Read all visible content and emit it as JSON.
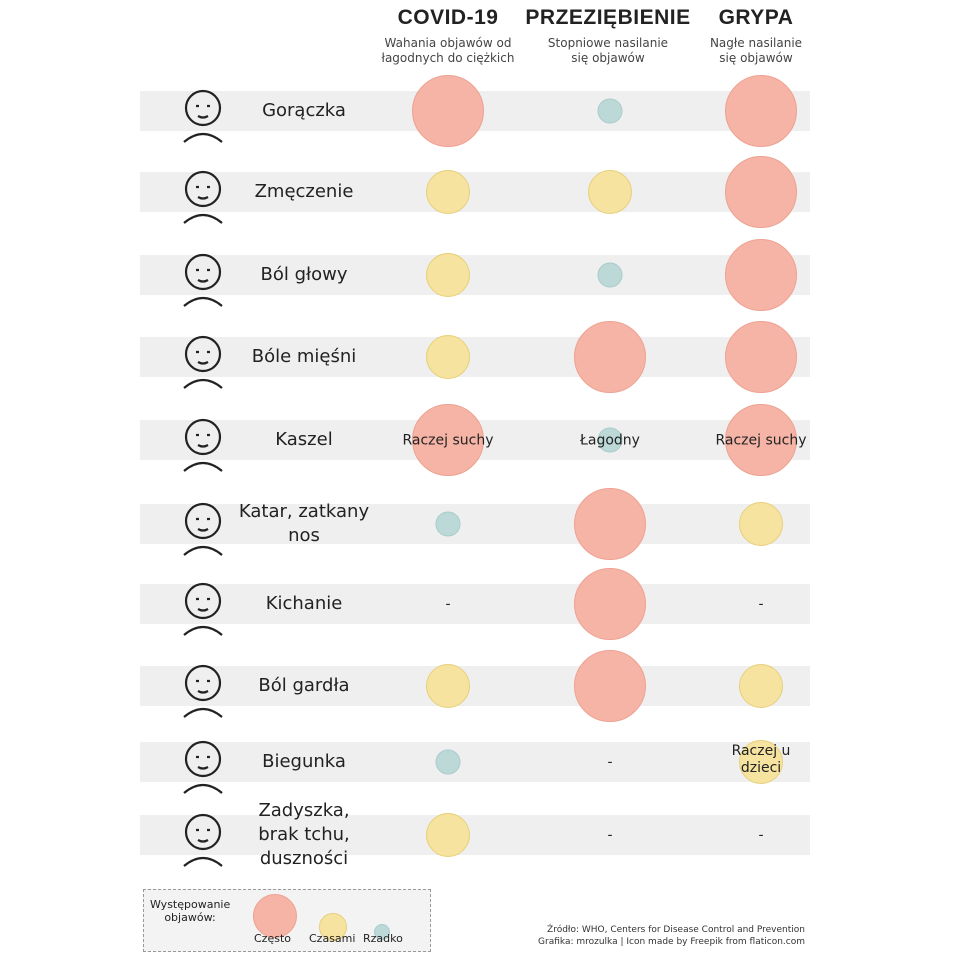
{
  "columns": [
    {
      "title": "COVID-19",
      "subtitle": "Wahania objawów od łagodnych do ciężkich"
    },
    {
      "title": "PRZEZIĘBIENIE",
      "subtitle": "Stopniowe nasilanie się objawów"
    },
    {
      "title": "GRYPA",
      "subtitle": "Nagłe nasilanie się objawów"
    }
  ],
  "colors": {
    "czesto": "#f6b4a6",
    "czasami": "#f6e3a0",
    "rzadko": "#bcd9d8"
  },
  "rows": [
    {
      "label": "Gorączka",
      "icon": "fever-thermometer-icon",
      "cells": [
        {
          "freq": "big"
        },
        {
          "freq": "small"
        },
        {
          "freq": "big"
        }
      ]
    },
    {
      "label": "Zmęczenie",
      "icon": "bed-icon",
      "cells": [
        {
          "freq": "med"
        },
        {
          "freq": "med"
        },
        {
          "freq": "big"
        }
      ]
    },
    {
      "label": "Ból głowy",
      "icon": "headache-face-icon",
      "cells": [
        {
          "freq": "med"
        },
        {
          "freq": "small"
        },
        {
          "freq": "big"
        }
      ]
    },
    {
      "label": "Bóle mięśni",
      "icon": "muscle-pain-torso-icon",
      "cells": [
        {
          "freq": "med"
        },
        {
          "freq": "big"
        },
        {
          "freq": "big"
        }
      ]
    },
    {
      "label": "Kaszel",
      "icon": "cough-face-icon",
      "cells": [
        {
          "freq": "big",
          "note": "Raczej suchy"
        },
        {
          "freq": "small",
          "note": "Łagodny"
        },
        {
          "freq": "big",
          "note": "Raczej suchy"
        }
      ]
    },
    {
      "label": "Katar, zatkany nos",
      "icon": "runny-nose-icon",
      "cells": [
        {
          "freq": "small"
        },
        {
          "freq": "big"
        },
        {
          "freq": "med"
        }
      ]
    },
    {
      "label": "Kichanie",
      "icon": "sneeze-face-icon",
      "cells": [
        {
          "freq": "none",
          "note": "-"
        },
        {
          "freq": "big"
        },
        {
          "freq": "none",
          "note": "-"
        }
      ]
    },
    {
      "label": "Ból gardła",
      "icon": "sore-throat-face-icon",
      "cells": [
        {
          "freq": "med"
        },
        {
          "freq": "big"
        },
        {
          "freq": "med"
        }
      ]
    },
    {
      "label": "Biegunka",
      "icon": "intestines-icon",
      "cells": [
        {
          "freq": "small"
        },
        {
          "freq": "none",
          "note": "-"
        },
        {
          "freq": "med",
          "note": "Raczej u dzieci"
        }
      ]
    },
    {
      "label": "Zadyszka, brak tchu, duszności",
      "icon": "lungs-icon",
      "cells": [
        {
          "freq": "med"
        },
        {
          "freq": "none",
          "note": "-"
        },
        {
          "freq": "none",
          "note": "-"
        }
      ]
    }
  ],
  "legend": {
    "title": "Występowanie objawów:",
    "czesto": "Często",
    "czasami": "Czasami",
    "rzadko": "Rzadko"
  },
  "footer": {
    "source": "Źródło: WHO, Centers for Disease Control and Prevention",
    "credit": "Grafika: mrozulka | Icon made by Freepik from flaticon.com"
  }
}
